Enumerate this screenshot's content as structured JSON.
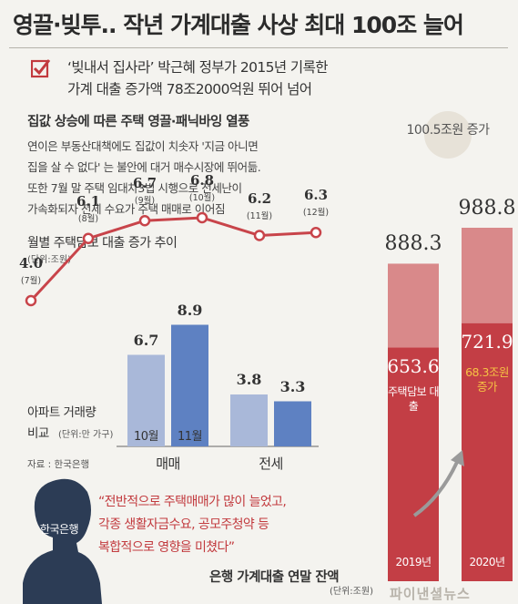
{
  "title": "영끌·빚투.. 작년 가계대출 사상 최대 100조 늘어",
  "subtitle_lines": [
    "‘빚내서 집사라’ 박근혜 정부가 2015년 기록한",
    "가계 대출 증가액 78조2000억원 뛰어 넘어"
  ],
  "section_heading": "집값 상승에 따른 주택 영끌·패닉바잉 열풍",
  "body_lines": [
    "연이은 부동산대책에도 집값이 치솟자 '지금 아니면",
    "집을 살 수 없다' 는 불안에 대거 매수시장에 뛰어듦.",
    "또한 7월 말 주택 임대차3법 시행으로 전세난이",
    "가속화되자 전세 수요가 주택 매매로 이어짐"
  ],
  "source": "자료 : 한국은행",
  "bok_label": "한국은행",
  "quote_lines": [
    "“전반적으로 주택매매가 많이 늘었고,",
    "각종 생활자금수요, 공모주청약 등",
    "복합적으로 영향을 미쳤다”"
  ],
  "watermark": "파이낸셜뉴스",
  "icon": "check-box-icon",
  "colors": {
    "line": "#c8444a",
    "bar_light": "#a9b8d9",
    "bar_dark": "#5e81c2",
    "bar_total": "#d9898a",
    "bar_mortgage": "#c33e45",
    "highlight_text": "#f6c244"
  },
  "chart_data": [
    {
      "type": "line",
      "title": "월별 주택담보 대출 증가 추이",
      "unit": "(단위:조원)",
      "categories": [
        "(7월)",
        "(8월)",
        "(9월)",
        "(10월)",
        "(11월)",
        "(12월)"
      ],
      "values": [
        4.0,
        6.1,
        6.7,
        6.8,
        6.2,
        6.3
      ],
      "value_labels": [
        "4.0",
        "6.1",
        "6.7",
        "6.8",
        "6.2",
        "6.3"
      ]
    },
    {
      "type": "bar",
      "title_lines": [
        "아파트 거래량",
        "비교"
      ],
      "unit": "(단위:만 가구)",
      "categories": [
        "매매",
        "전세"
      ],
      "series": [
        {
          "name": "10월",
          "values": [
            6.7,
            3.8
          ]
        },
        {
          "name": "11월",
          "values": [
            8.9,
            3.3
          ]
        }
      ],
      "value_labels": [
        [
          "6.7",
          "3.8"
        ],
        [
          "8.9",
          "3.3"
        ]
      ]
    },
    {
      "type": "bar",
      "title": "은행 가계대출 연말 잔액",
      "unit": "(단위:조원)",
      "categories": [
        "2019년",
        "2020년"
      ],
      "series": [
        {
          "name": "주택담보 대출",
          "values": [
            653.6,
            721.9
          ]
        },
        {
          "name": "total",
          "values": [
            888.3,
            988.8
          ]
        }
      ],
      "total_labels": [
        "888.3",
        "988.8"
      ],
      "mortgage_labels": [
        "653.6",
        "721.9"
      ],
      "mortgage_series_label": "주택담보 대출",
      "increase_label": "100.5조원 증가",
      "mortgage_increase_label": "68.3조원 증가"
    }
  ]
}
